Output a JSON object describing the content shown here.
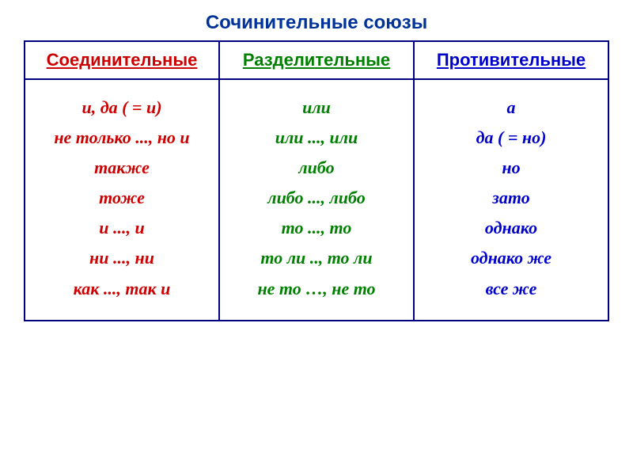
{
  "title": "Сочинительные союзы",
  "columns": {
    "col1": {
      "header": "Соединительные",
      "header_color": "#cc0000",
      "items": [
        "и, да ( = и)",
        "не только ..., но и",
        "также",
        "тоже",
        "и ..., и",
        "ни ..., ни",
        "как ..., так и"
      ],
      "content_color": "#cc0000"
    },
    "col2": {
      "header": "Разделительные",
      "header_color": "#008000",
      "items": [
        "или",
        "или ..., или",
        "либо",
        "либо ..., либо",
        "то ..., то",
        "то ли .., то ли",
        "не то …, не то"
      ],
      "content_color": "#008000"
    },
    "col3": {
      "header": "Противительные",
      "header_color": "#0000cc",
      "items": [
        "а",
        "да ( = но)",
        "но",
        "зато",
        "однако",
        "однако же",
        "все же"
      ],
      "content_color": "#0000cc"
    }
  },
  "styling": {
    "title_color": "#003399",
    "title_fontsize": 24,
    "border_color": "#000080",
    "header_fontsize": 22,
    "content_fontsize": 22,
    "background": "#ffffff",
    "font_family_headers": "Arial",
    "font_family_content": "Georgia",
    "content_font_style": "italic",
    "content_font_weight": "bold"
  }
}
